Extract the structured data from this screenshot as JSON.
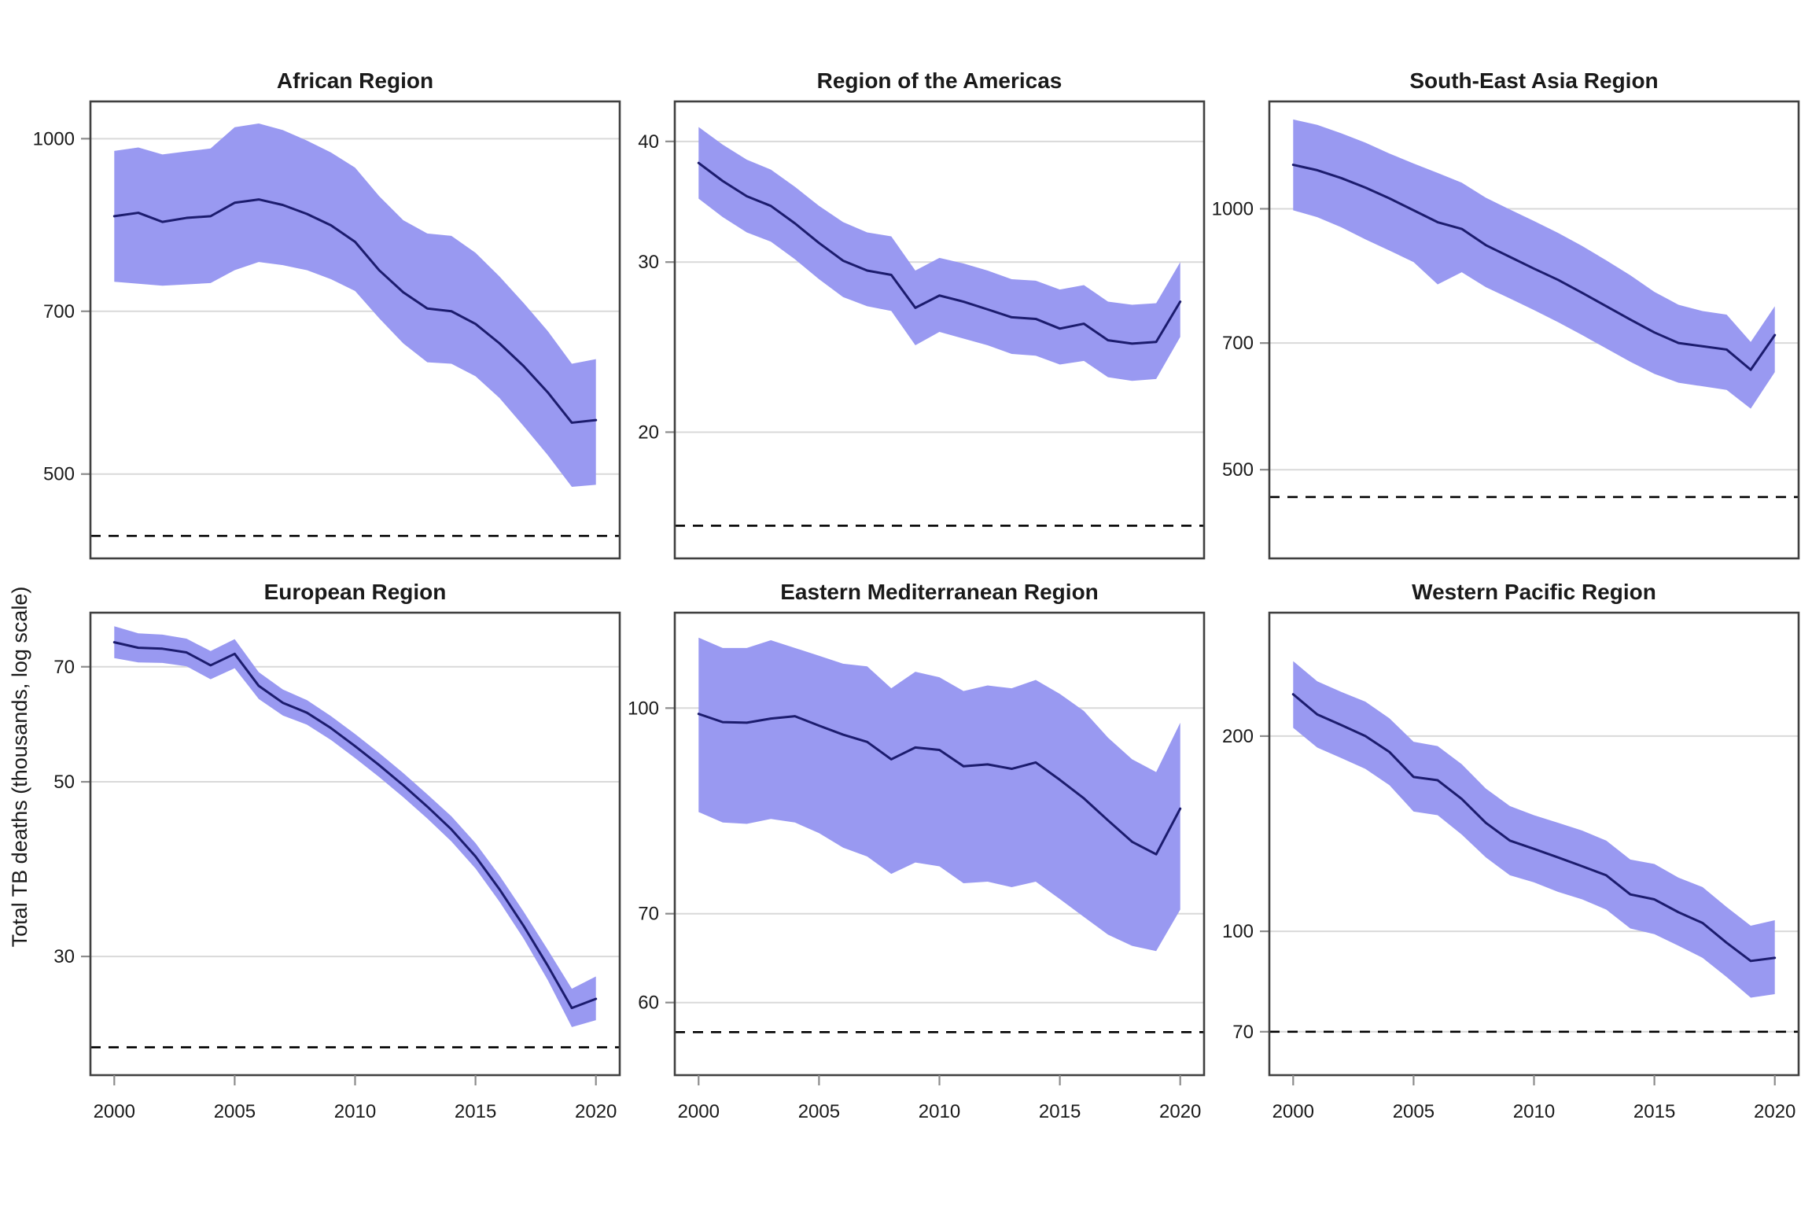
{
  "chart_data": {
    "type": "line",
    "ylabel": "Total TB deaths (thousands, log scale)",
    "x_start": 2000,
    "x_end": 2020,
    "x_ticks": [
      2000,
      2005,
      2010,
      2015,
      2020
    ],
    "grid": "horizontal-major-only",
    "legend": false,
    "log_scale": true,
    "colors": {
      "ribbon": "#9999F1",
      "line": "#1C1C6E",
      "gridline": "#D9D9D9",
      "border": "#404040",
      "tick": "#8C8C8C",
      "text": "#1A1A1A",
      "dashed": "#000000"
    },
    "panels": [
      {
        "title": "African Region",
        "y_ticks": [
          1000,
          700,
          500
        ],
        "ylim": [
          420,
          1080
        ],
        "dashed_target": 440,
        "line": [
          852,
          858,
          842,
          849,
          852,
          876,
          882,
          872,
          856,
          836,
          808,
          762,
          728,
          704,
          700,
          682,
          655,
          625,
          592,
          556,
          559
        ],
        "upper": [
          975,
          982,
          968,
          974,
          980,
          1024,
          1032,
          1018,
          996,
          972,
          942,
          888,
          845,
          822,
          818,
          790,
          752,
          712,
          672,
          628,
          634
        ],
        "lower": [
          744,
          741,
          738,
          740,
          742,
          762,
          775,
          770,
          762,
          748,
          730,
          690,
          655,
          630,
          628,
          612,
          585,
          552,
          520,
          487,
          489
        ]
      },
      {
        "title": "Region of the Americas",
        "y_ticks": [
          40,
          30,
          20
        ],
        "ylim": [
          14.8,
          44
        ],
        "dashed_target": 16,
        "line": [
          38.0,
          36.4,
          35.1,
          34.3,
          32.9,
          31.4,
          30.1,
          29.4,
          29.1,
          26.9,
          27.7,
          27.3,
          26.8,
          26.3,
          26.2,
          25.6,
          25.9,
          24.9,
          24.7,
          24.8,
          27.3
        ],
        "upper": [
          41.4,
          39.7,
          38.3,
          37.4,
          35.9,
          34.3,
          33.0,
          32.2,
          31.9,
          29.4,
          30.3,
          29.9,
          29.4,
          28.8,
          28.7,
          28.1,
          28.4,
          27.3,
          27.1,
          27.2,
          30.0
        ],
        "lower": [
          34.9,
          33.4,
          32.2,
          31.5,
          30.2,
          28.8,
          27.6,
          27.0,
          26.7,
          24.6,
          25.4,
          25.0,
          24.6,
          24.1,
          24.0,
          23.5,
          23.7,
          22.8,
          22.6,
          22.7,
          25.1
        ]
      },
      {
        "title": "South-East Asia Region",
        "y_ticks": [
          1000,
          700,
          500
        ],
        "ylim": [
          395,
          1330
        ],
        "dashed_target": 465,
        "line": [
          1124,
          1108,
          1085,
          1058,
          1028,
          996,
          965,
          948,
          908,
          880,
          853,
          828,
          800,
          772,
          745,
          720,
          700,
          694,
          688,
          652,
          715
        ],
        "upper": [
          1268,
          1250,
          1222,
          1192,
          1158,
          1128,
          1100,
          1072,
          1030,
          998,
          968,
          938,
          906,
          872,
          838,
          802,
          775,
          762,
          755,
          702,
          772
        ],
        "lower": [
          996,
          978,
          952,
          922,
          895,
          868,
          818,
          845,
          812,
          788,
          764,
          740,
          715,
          690,
          666,
          645,
          630,
          624,
          618,
          588,
          648
        ]
      },
      {
        "title": "European Region",
        "y_ticks": [
          70,
          50,
          30
        ],
        "ylim": [
          21.2,
          82
        ],
        "dashed_target": 23,
        "line": [
          75.2,
          74.0,
          73.8,
          73.0,
          70.3,
          72.7,
          66.2,
          63.0,
          61.2,
          58.5,
          55.5,
          52.5,
          49.5,
          46.5,
          43.5,
          40.2,
          36.5,
          32.8,
          29.2,
          25.8,
          26.5
        ],
        "upper": [
          78.8,
          77.2,
          76.9,
          76.0,
          73.3,
          75.9,
          68.9,
          65.5,
          63.5,
          60.6,
          57.5,
          54.4,
          51.3,
          48.2,
          45.2,
          41.8,
          38.0,
          34.2,
          30.6,
          27.3,
          28.3
        ],
        "lower": [
          71.8,
          70.9,
          70.8,
          70.1,
          67.5,
          69.7,
          63.7,
          60.7,
          59.1,
          56.5,
          53.6,
          50.7,
          47.8,
          44.9,
          42.0,
          38.8,
          35.2,
          31.6,
          28.0,
          24.4,
          24.9
        ]
      },
      {
        "title": "Eastern Mediterranean Region",
        "y_ticks": [
          100,
          70,
          60
        ],
        "ylim": [
          52.9,
          118
        ],
        "dashed_target": 57,
        "line": [
          99.0,
          97.6,
          97.5,
          98.2,
          98.6,
          97.0,
          95.5,
          94.3,
          91.5,
          93.4,
          93.0,
          90.4,
          90.7,
          90.0,
          91.0,
          88.3,
          85.5,
          82.3,
          79.3,
          77.6,
          84.0
        ],
        "upper": [
          113,
          111,
          111,
          112.5,
          111,
          109.5,
          108,
          107.5,
          103.5,
          106.5,
          105.5,
          103,
          104,
          103.5,
          105,
          102.5,
          99.5,
          95,
          91.5,
          89.5,
          97.5
        ],
        "lower": [
          83.5,
          82.0,
          81.8,
          82.5,
          82.0,
          80.5,
          78.5,
          77.3,
          75.0,
          76.5,
          76.0,
          73.8,
          74.0,
          73.3,
          74.0,
          71.8,
          69.6,
          67.5,
          66.2,
          65.6,
          70.5
        ]
      },
      {
        "title": "Western Pacific Region",
        "y_ticks": [
          200,
          100,
          70
        ],
        "ylim": [
          60,
          310
        ],
        "dashed_target": 70,
        "line": [
          232,
          216,
          208,
          200,
          189,
          173,
          171,
          160,
          147,
          138,
          134,
          130,
          126,
          122,
          114,
          112,
          107,
          103,
          96,
          90,
          91
        ],
        "upper": [
          261,
          243,
          234,
          226,
          213,
          196,
          193,
          181,
          166,
          156,
          151,
          147,
          143,
          138,
          129,
          127,
          121,
          117,
          109,
          102,
          104
        ],
        "lower": [
          206,
          192,
          185,
          178,
          168,
          153,
          151,
          141,
          130,
          122,
          119,
          115,
          112,
          108,
          101,
          99,
          95,
          91,
          85,
          79,
          80
        ]
      }
    ]
  }
}
